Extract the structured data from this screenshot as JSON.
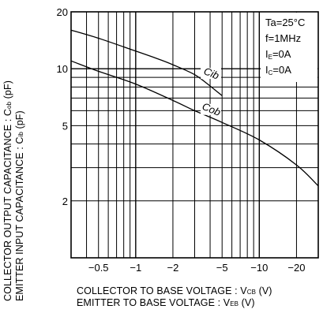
{
  "chart_data": {
    "type": "line",
    "x_scale": "log",
    "y_scale": "log",
    "xlim": [
      -0.3,
      -30
    ],
    "ylim": [
      1,
      20
    ],
    "x_ticks": [
      {
        "value": -0.5,
        "label": "−0.5"
      },
      {
        "value": -1,
        "label": "−1"
      },
      {
        "value": -2,
        "label": "−2"
      },
      {
        "value": -5,
        "label": "−5"
      },
      {
        "value": -10,
        "label": "−10"
      },
      {
        "value": -20,
        "label": "−20"
      }
    ],
    "y_ticks": [
      {
        "value": 2,
        "label": "2"
      },
      {
        "value": 5,
        "label": "5"
      },
      {
        "value": 10,
        "label": "10"
      },
      {
        "value": 20,
        "label": "20"
      }
    ],
    "grid": true,
    "ylabel": {
      "line1": {
        "text": "COLLECTOR OUTPUT CAPACITANCE : C",
        "sub": "ob",
        "tail": " (pF)"
      },
      "line2": {
        "text": "EMITTER INPUT CAPACITANCE : C",
        "sub": "ib",
        "tail": " (pF)"
      }
    },
    "xlabel": {
      "line1": {
        "text": "COLLECTOR TO BASE VOLTAGE : V",
        "sub": "CB",
        "tail": " (V)"
      },
      "line2": {
        "text": "EMITTER TO BASE VOLTAGE : V",
        "sub": "EB",
        "tail": " (V)"
      }
    },
    "conditions": [
      {
        "text": "Ta=25°C",
        "sub": "",
        "tail": ""
      },
      {
        "text": "f=1MHz",
        "sub": "",
        "tail": ""
      },
      {
        "text": "I",
        "sub": "E",
        "tail": "=0A"
      },
      {
        "text": "I",
        "sub": "C",
        "tail": "=0A"
      }
    ],
    "series": [
      {
        "name": "Cib",
        "x": [
          -0.3,
          -0.5,
          -1,
          -1.5,
          -2,
          -3,
          -4,
          -5
        ],
        "y": [
          16,
          14.5,
          12.4,
          11.3,
          10.5,
          9.3,
          8.1,
          7.2
        ]
      },
      {
        "name": "Cob",
        "x": [
          -0.3,
          -0.5,
          -1,
          -2,
          -3,
          -5,
          -10,
          -20,
          -30
        ],
        "y": [
          11,
          9.7,
          8.3,
          6.8,
          6.0,
          5.2,
          4.2,
          3.1,
          2.4
        ]
      }
    ]
  }
}
